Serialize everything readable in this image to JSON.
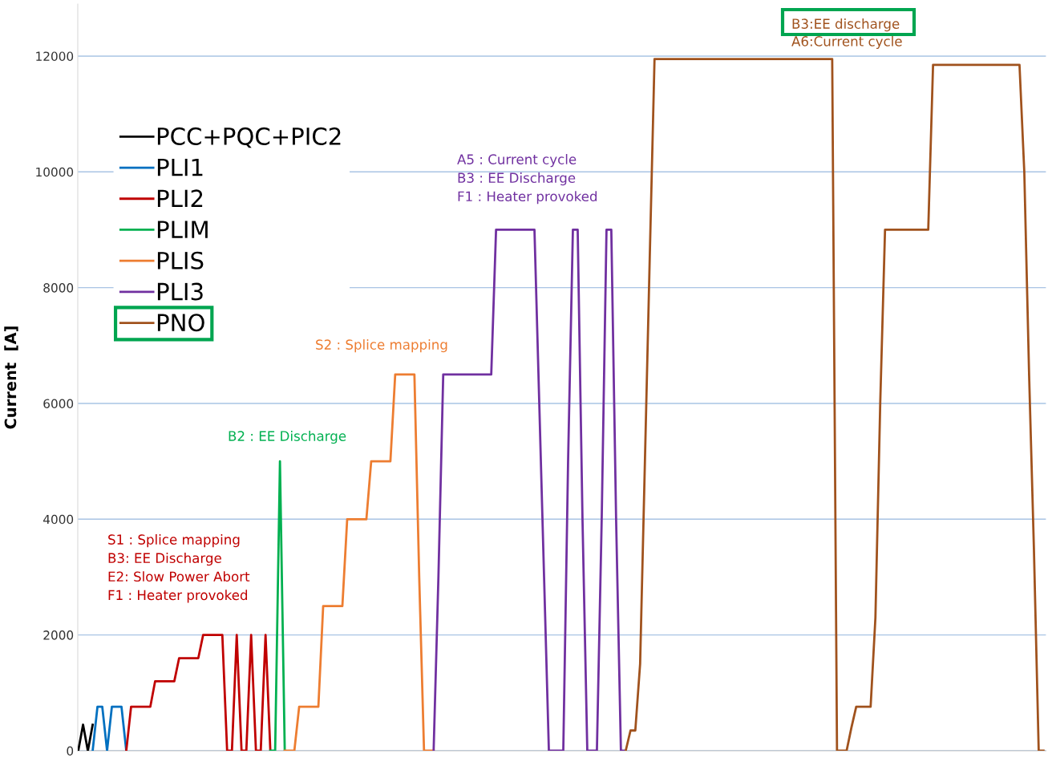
{
  "chart_data": {
    "type": "line",
    "ylabel": "Current  [A]",
    "categories": [
      null,
      null,
      null,
      null,
      null,
      null,
      null,
      null,
      null,
      null,
      null,
      null,
      null,
      null,
      null,
      null,
      null,
      null,
      null,
      null,
      null,
      null,
      null,
      null,
      null,
      null,
      null,
      null,
      null,
      null,
      null,
      null,
      null,
      null,
      null,
      null,
      null,
      null,
      null,
      null,
      null,
      null,
      null,
      null,
      null,
      null,
      null,
      null,
      null,
      null,
      null,
      null,
      null,
      null,
      null,
      null,
      null,
      null,
      null,
      null,
      null,
      null,
      null,
      null,
      null,
      null,
      null,
      null,
      null,
      null,
      null,
      null,
      null,
      null,
      null,
      null,
      null,
      null,
      null,
      null,
      null,
      null,
      null,
      null,
      null,
      null,
      null,
      null,
      null,
      null,
      null,
      null,
      null,
      null,
      null,
      null,
      null,
      null,
      null,
      null,
      null,
      null,
      null,
      null,
      null,
      null,
      null,
      null,
      null,
      null,
      null,
      null,
      null,
      null,
      null,
      null,
      null,
      null,
      null,
      null,
      null,
      null,
      null,
      null,
      null,
      null,
      null,
      null,
      null,
      null,
      null,
      null,
      null,
      null,
      null,
      null,
      null,
      null,
      null,
      null,
      null,
      null,
      null,
      null,
      null,
      null,
      null,
      null,
      null,
      null,
      null,
      null,
      null,
      null,
      null,
      null,
      null,
      null,
      null,
      null,
      null,
      null,
      null,
      null,
      null,
      null,
      null,
      null,
      null,
      null,
      null,
      null,
      null,
      null,
      null,
      null,
      null,
      null,
      null,
      null,
      null,
      null,
      null,
      null,
      null,
      null,
      null,
      null,
      null,
      null,
      null,
      null,
      null,
      null,
      null,
      null,
      null,
      null,
      null,
      null,
      null,
      null
    ],
    "series": [
      {
        "name": "PCC+PQC+PIC2",
        "color": "#000000",
        "values": [
          0,
          450,
          0,
          450,
          null,
          null,
          null,
          null,
          null,
          null,
          null,
          null,
          null,
          null,
          null,
          null,
          null,
          null,
          null,
          null,
          null,
          null,
          null,
          null,
          null,
          null,
          null,
          null,
          null,
          null,
          null,
          null,
          null,
          null,
          null,
          null,
          null,
          null,
          null,
          null,
          null,
          null,
          null,
          null,
          null,
          null,
          null,
          null,
          null,
          null,
          null,
          null,
          null,
          null,
          null,
          null,
          null,
          null,
          null,
          null,
          null,
          null,
          null,
          null,
          null,
          null,
          null,
          null,
          null,
          null,
          null,
          null,
          null,
          null,
          null,
          null,
          null,
          null,
          null,
          null,
          null,
          null,
          null,
          null,
          null,
          null,
          null,
          null,
          null,
          null,
          null,
          null,
          null,
          null,
          null,
          null,
          null,
          null,
          null,
          null,
          null,
          null,
          null,
          null,
          null,
          null,
          null,
          null,
          null,
          null,
          null,
          null,
          null,
          null,
          null,
          null,
          null,
          null,
          null,
          null,
          null,
          null,
          null,
          null,
          null,
          null,
          null,
          null,
          null,
          null,
          null,
          null,
          null,
          null,
          null,
          null,
          null,
          null,
          null,
          null,
          null,
          null,
          null,
          null,
          null,
          null,
          null,
          null,
          null,
          null,
          null,
          null,
          null,
          null,
          null,
          null,
          null,
          null,
          null,
          null,
          null,
          null,
          null,
          null,
          null,
          null,
          null,
          null,
          null,
          null,
          null,
          null,
          null,
          null,
          null,
          null,
          null,
          null,
          null,
          null,
          null,
          null,
          null,
          null,
          null,
          null,
          null,
          null,
          null,
          null,
          null,
          null,
          null,
          null,
          null,
          null,
          null,
          null,
          null,
          null,
          null,
          null
        ]
      },
      {
        "name": "PLI1",
        "color": "#0070c0",
        "values": [
          null,
          null,
          null,
          0,
          760,
          760,
          0,
          760,
          760,
          760,
          0,
          null,
          null,
          null,
          null,
          null,
          null,
          null,
          null,
          null,
          null,
          null,
          null,
          null,
          null,
          null,
          null,
          null,
          null,
          null,
          null,
          null,
          null,
          null,
          null,
          null,
          null,
          null,
          null,
          null,
          null,
          null,
          null,
          null,
          null,
          null,
          null,
          null,
          null,
          null,
          null,
          null,
          null,
          null,
          null,
          null,
          null,
          null,
          null,
          null,
          null,
          null,
          null,
          null,
          null,
          null,
          null,
          null,
          null,
          null,
          null,
          null,
          null,
          null,
          null,
          null,
          null,
          null,
          null,
          null,
          null,
          null,
          null,
          null,
          null,
          null,
          null,
          null,
          null,
          null,
          null,
          null,
          null,
          null,
          null,
          null,
          null,
          null,
          null,
          null,
          null,
          null,
          null,
          null,
          null,
          null,
          null,
          null,
          null,
          null,
          null,
          null,
          null,
          null,
          null,
          null,
          null,
          null,
          null,
          null,
          null,
          null,
          null,
          null,
          null,
          null,
          null,
          null,
          null,
          null,
          null,
          null,
          null,
          null,
          null,
          null,
          null,
          null,
          null,
          null,
          null,
          null,
          null,
          null,
          null,
          null,
          null,
          null,
          null,
          null,
          null,
          null,
          null,
          null,
          null,
          null,
          null,
          null,
          null,
          null,
          null,
          null,
          null,
          null,
          null,
          null,
          null,
          null,
          null,
          null,
          null,
          null,
          null,
          null,
          null,
          null,
          null,
          null,
          null,
          null,
          null,
          null,
          null,
          null,
          null,
          null,
          null,
          null,
          null,
          null,
          null,
          null,
          null,
          null,
          null,
          null,
          null,
          null,
          null,
          null,
          null,
          null
        ]
      },
      {
        "name": "PLI2",
        "color": "#c00000",
        "values": [
          null,
          null,
          null,
          null,
          null,
          null,
          null,
          null,
          null,
          null,
          0,
          760,
          760,
          760,
          760,
          760,
          1200,
          1200,
          1200,
          1200,
          1200,
          1600,
          1600,
          1600,
          1600,
          1600,
          2000,
          2000,
          2000,
          2000,
          2000,
          0,
          0,
          2000,
          0,
          0,
          2000,
          0,
          0,
          2000,
          0,
          null,
          null,
          null,
          null,
          null,
          null,
          null,
          null,
          null,
          null,
          null,
          null,
          null,
          null,
          null,
          null,
          null,
          null,
          null,
          null,
          null,
          null,
          null,
          null,
          null,
          null,
          null,
          null,
          null,
          null,
          null,
          null,
          null,
          null,
          null,
          null,
          null,
          null,
          null,
          null,
          null,
          null,
          null,
          null,
          null,
          null,
          null,
          null,
          null,
          null,
          null,
          null,
          null,
          null,
          null,
          null,
          null,
          null,
          null,
          null,
          null,
          null,
          null,
          null,
          null,
          null,
          null,
          null,
          null,
          null,
          null,
          null,
          null,
          null,
          null,
          null,
          null,
          null,
          null,
          null,
          null,
          null,
          null,
          null,
          null,
          null,
          null,
          null,
          null,
          null,
          null,
          null,
          null,
          null,
          null,
          null,
          null,
          null,
          null,
          null,
          null,
          null,
          null,
          null,
          null,
          null,
          null,
          null,
          null,
          null,
          null,
          null,
          null,
          null,
          null,
          null,
          null,
          null,
          null,
          null,
          null,
          null,
          null,
          null,
          null,
          null,
          null,
          null,
          null,
          null,
          null,
          null,
          null,
          null,
          null,
          null,
          null,
          null,
          null,
          null,
          null,
          null,
          null,
          null,
          null,
          null,
          null,
          null,
          null,
          null,
          null,
          null,
          null,
          null,
          null,
          null,
          null,
          null,
          null,
          null,
          null
        ]
      },
      {
        "name": "PLIM",
        "color": "#00b050",
        "values": [
          null,
          null,
          null,
          null,
          null,
          null,
          null,
          null,
          null,
          null,
          null,
          null,
          null,
          null,
          null,
          null,
          null,
          null,
          null,
          null,
          null,
          null,
          null,
          null,
          null,
          null,
          null,
          null,
          null,
          null,
          null,
          null,
          null,
          null,
          null,
          null,
          null,
          null,
          null,
          null,
          0,
          0,
          5000,
          0,
          null,
          null,
          null,
          null,
          null,
          null,
          null,
          null,
          null,
          null,
          null,
          null,
          null,
          null,
          null,
          null,
          null,
          null,
          null,
          null,
          null,
          null,
          null,
          null,
          null,
          null,
          null,
          null,
          null,
          null,
          null,
          null,
          null,
          null,
          null,
          null,
          null,
          null,
          null,
          null,
          null,
          null,
          null,
          null,
          null,
          null,
          null,
          null,
          null,
          null,
          null,
          null,
          null,
          null,
          null,
          null,
          null,
          null,
          null,
          null,
          null,
          null,
          null,
          null,
          null,
          null,
          null,
          null,
          null,
          null,
          null,
          null,
          null,
          null,
          null,
          null,
          null,
          null,
          null,
          null,
          null,
          null,
          null,
          null,
          null,
          null,
          null,
          null,
          null,
          null,
          null,
          null,
          null,
          null,
          null,
          null,
          null,
          null,
          null,
          null,
          null,
          null,
          null,
          null,
          null,
          null,
          null,
          null,
          null,
          null,
          null,
          null,
          null,
          null,
          null,
          null,
          null,
          null,
          null,
          null,
          null,
          null,
          null,
          null,
          null,
          null,
          null,
          null,
          null,
          null,
          null,
          null,
          null,
          null,
          null,
          null,
          null,
          null,
          null,
          null,
          null,
          null,
          null,
          null,
          null,
          null,
          null,
          null,
          null,
          null,
          null,
          null,
          null,
          null,
          null,
          null,
          null,
          null
        ]
      },
      {
        "name": "PLIS",
        "color": "#ed7d31",
        "values": [
          null,
          null,
          null,
          null,
          null,
          null,
          null,
          null,
          null,
          null,
          null,
          null,
          null,
          null,
          null,
          null,
          null,
          null,
          null,
          null,
          null,
          null,
          null,
          null,
          null,
          null,
          null,
          null,
          null,
          null,
          null,
          null,
          null,
          null,
          null,
          null,
          null,
          null,
          null,
          null,
          null,
          null,
          null,
          0,
          0,
          0,
          760,
          760,
          760,
          760,
          760,
          2500,
          2500,
          2500,
          2500,
          2500,
          4000,
          4000,
          4000,
          4000,
          4000,
          5000,
          5000,
          5000,
          5000,
          5000,
          6500,
          6500,
          6500,
          6500,
          6500,
          3000,
          0,
          0,
          0,
          null,
          null,
          null,
          null,
          null,
          null,
          null,
          null,
          null,
          null,
          null,
          null,
          null,
          null,
          null,
          null,
          null,
          null,
          null,
          null,
          null,
          null,
          null,
          null,
          null,
          null,
          null,
          null,
          null,
          null,
          null,
          null,
          null,
          null,
          null,
          null,
          null,
          null,
          null,
          null,
          null,
          null,
          null,
          null,
          null,
          null,
          null,
          null,
          null,
          null,
          null,
          null,
          null,
          null,
          null,
          null,
          null,
          null,
          null,
          null,
          null,
          null,
          null,
          null,
          null,
          null,
          null,
          null,
          null,
          null,
          null,
          null,
          null,
          null,
          null,
          null,
          null,
          null,
          null,
          null,
          null,
          null,
          null,
          null,
          null,
          null,
          null,
          null,
          null,
          null,
          null,
          null,
          null,
          null,
          null,
          null,
          null,
          null,
          null,
          null,
          null,
          null,
          null,
          null,
          null,
          null,
          null,
          null,
          null,
          null,
          null,
          null,
          null,
          null,
          null,
          null,
          null,
          null,
          null,
          null,
          null,
          null,
          null,
          null,
          null,
          null,
          null
        ]
      },
      {
        "name": "PLI3",
        "color": "#7030a0",
        "values": [
          null,
          null,
          null,
          null,
          null,
          null,
          null,
          null,
          null,
          null,
          null,
          null,
          null,
          null,
          null,
          null,
          null,
          null,
          null,
          null,
          null,
          null,
          null,
          null,
          null,
          null,
          null,
          null,
          null,
          null,
          null,
          null,
          null,
          null,
          null,
          null,
          null,
          null,
          null,
          null,
          null,
          null,
          null,
          null,
          null,
          null,
          null,
          null,
          null,
          null,
          null,
          null,
          null,
          null,
          null,
          null,
          null,
          null,
          null,
          null,
          null,
          null,
          null,
          null,
          null,
          null,
          null,
          null,
          null,
          null,
          null,
          null,
          null,
          null,
          0,
          3000,
          6500,
          6500,
          6500,
          6500,
          6500,
          6500,
          6500,
          6500,
          6500,
          6500,
          6500,
          9000,
          9000,
          9000,
          9000,
          9000,
          9000,
          9000,
          9000,
          9000,
          6000,
          3000,
          0,
          0,
          0,
          0,
          5000,
          9000,
          9000,
          4000,
          0,
          0,
          0,
          4000,
          9000,
          9000,
          4000,
          0,
          0,
          null,
          null,
          null,
          null,
          null,
          null,
          null,
          null,
          null,
          null,
          null,
          null,
          null,
          null,
          null,
          null,
          null,
          null,
          null,
          null,
          null,
          null,
          null,
          null,
          null,
          null,
          null,
          null,
          null,
          null,
          null,
          null,
          null,
          null,
          null,
          null,
          null,
          null,
          null,
          null,
          null,
          null,
          null,
          null,
          null,
          null,
          null,
          null,
          null,
          null,
          null,
          null,
          null,
          null,
          null,
          null,
          null,
          null,
          null,
          null,
          null,
          null,
          null,
          null,
          null,
          null,
          null,
          null,
          null,
          null,
          null,
          null,
          null,
          null,
          null,
          null,
          null,
          null,
          null,
          null,
          null,
          null,
          null,
          null,
          null,
          null,
          null
        ]
      },
      {
        "name": "PNO",
        "color": "#a0521d",
        "values": [
          null,
          null,
          null,
          null,
          null,
          null,
          null,
          null,
          null,
          null,
          null,
          null,
          null,
          null,
          null,
          null,
          null,
          null,
          null,
          null,
          null,
          null,
          null,
          null,
          null,
          null,
          null,
          null,
          null,
          null,
          null,
          null,
          null,
          null,
          null,
          null,
          null,
          null,
          null,
          null,
          null,
          null,
          null,
          null,
          null,
          null,
          null,
          null,
          null,
          null,
          null,
          null,
          null,
          null,
          null,
          null,
          null,
          null,
          null,
          null,
          null,
          null,
          null,
          null,
          null,
          null,
          null,
          null,
          null,
          null,
          null,
          null,
          null,
          null,
          null,
          null,
          null,
          null,
          null,
          null,
          null,
          null,
          null,
          null,
          null,
          null,
          null,
          null,
          null,
          null,
          null,
          null,
          null,
          null,
          null,
          null,
          null,
          null,
          null,
          null,
          null,
          null,
          null,
          null,
          null,
          null,
          null,
          null,
          null,
          null,
          null,
          null,
          null,
          null,
          0,
          350,
          350,
          1500,
          5000,
          8500,
          11950,
          11950,
          11950,
          11950,
          11950,
          11950,
          11950,
          11950,
          11950,
          11950,
          11950,
          11950,
          11950,
          11950,
          11950,
          11950,
          11950,
          11950,
          11950,
          11950,
          11950,
          11950,
          11950,
          11950,
          11950,
          11950,
          11950,
          11950,
          11950,
          11950,
          11950,
          11950,
          11950,
          11950,
          11950,
          11950,
          11950,
          11950,
          0,
          0,
          0,
          400,
          760,
          760,
          760,
          760,
          2300,
          6000,
          9000,
          9000,
          9000,
          9000,
          9000,
          9000,
          9000,
          9000,
          9000,
          9000,
          11850,
          11850,
          11850,
          11850,
          11850,
          11850,
          11850,
          11850,
          11850,
          11850,
          11850,
          11850,
          11850,
          11850,
          11850,
          11850,
          11850,
          11850,
          11850,
          10000,
          6500,
          3500,
          0,
          0
        ]
      }
    ],
    "ylim": [
      0,
      12900
    ],
    "yticks": [
      0,
      2000,
      4000,
      6000,
      8000,
      10000,
      12000
    ],
    "grid": "y",
    "legend": "top left",
    "marker": "none",
    "line_style": "solid",
    "tick_labels": "y",
    "annotations": [
      "S1 : Splice mapping\nB3: EE Discharge\nE2: Slow Power Abort\nF1 : Heater provoked",
      "B2 : EE Discharge",
      "S2 : Splice mapping",
      "A5 : Current cycle\nB3 : EE Discharge\nF1 : Heater provoked",
      "B3:EE discharge\nA6:Current cycle"
    ]
  }
}
